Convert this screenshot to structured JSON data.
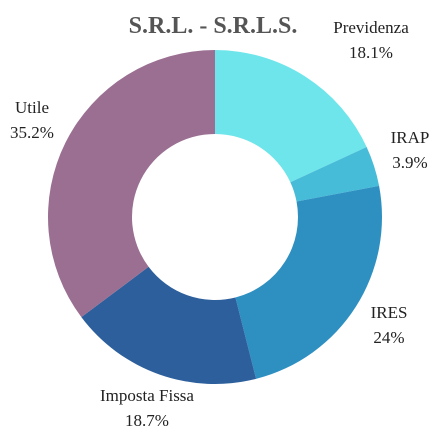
{
  "chart_data": {
    "type": "donut",
    "title": "S.R.L. - S.R.L.S.",
    "categories": [
      "Previdenza",
      "IRAP",
      "IRES",
      "Imposta Fissa",
      "Utile"
    ],
    "values": [
      18.1,
      3.9,
      24,
      18.7,
      35.2
    ],
    "value_labels": [
      "18.1%",
      "3.9%",
      "24%",
      "18.7%",
      "35.2%"
    ],
    "colors": [
      "#6de5ea",
      "#46bcd9",
      "#2e8fc1",
      "#2c5f9c",
      "#9b6f92"
    ]
  }
}
